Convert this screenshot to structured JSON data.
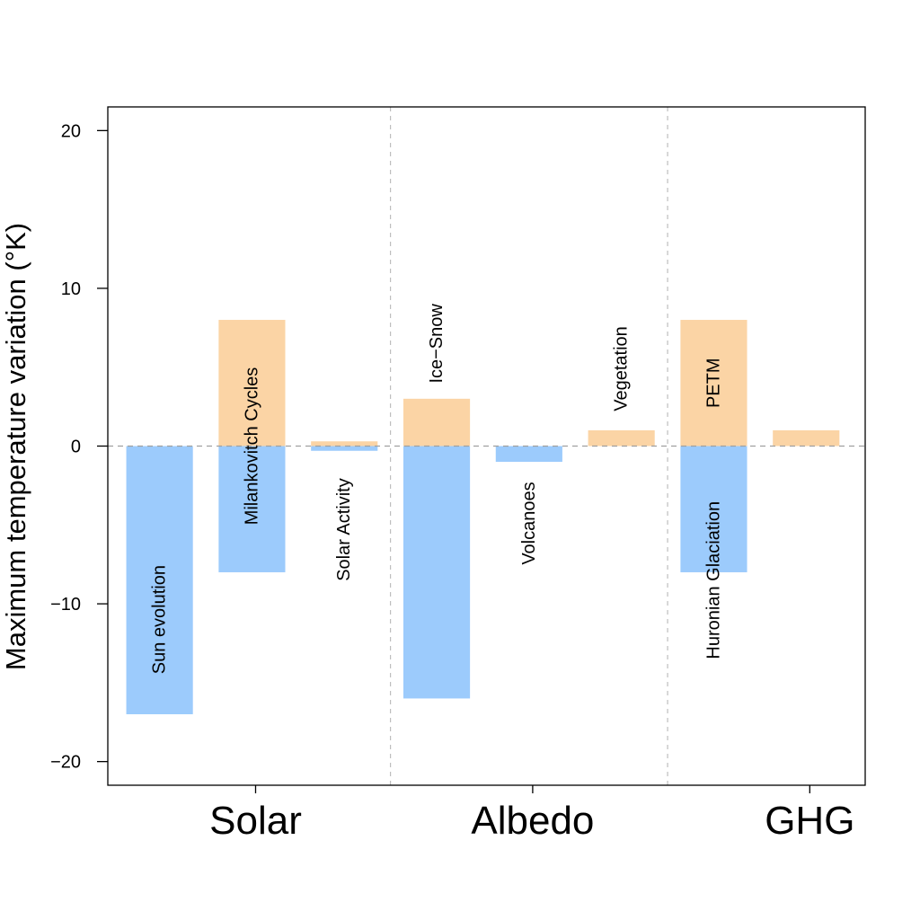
{
  "chart_data": {
    "type": "bar",
    "title": "",
    "xlabel": "",
    "ylabel": "Maximum temperature variation (°K)",
    "ylim": [
      -21.5,
      21.5
    ],
    "y_ticks": [
      -20,
      -10,
      0,
      10,
      20
    ],
    "y_tick_labels": [
      "−20",
      "−10",
      "0",
      "10",
      "20"
    ],
    "grid": false,
    "groups": [
      {
        "name": "Solar",
        "bars": 3
      },
      {
        "name": "Albedo",
        "bars": 3
      },
      {
        "name": "GHG",
        "bars": 2
      }
    ],
    "colors": {
      "warming": "#FBD4A5",
      "cooling": "#9CCBFC"
    },
    "bars": [
      {
        "group": "Solar",
        "max": 0,
        "min": -17,
        "labels": [
          {
            "text": "Sun evolution",
            "at": -11
          }
        ]
      },
      {
        "group": "Solar",
        "max": 8,
        "min": -8,
        "labels": [
          {
            "text": "Milankovitch Cycles",
            "at": 0
          }
        ]
      },
      {
        "group": "Solar",
        "max": 0.3,
        "min": -0.3,
        "labels": [
          {
            "text": "Solar Activity",
            "at": -5.3
          }
        ]
      },
      {
        "group": "Albedo",
        "max": 3,
        "min": -16,
        "labels": [
          {
            "text": "Ice−Snow",
            "at": 6.5
          }
        ]
      },
      {
        "group": "Albedo",
        "max": 0,
        "min": -1,
        "labels": [
          {
            "text": "Volcanoes",
            "at": -4.9
          }
        ]
      },
      {
        "group": "Albedo",
        "max": 1,
        "min": 0,
        "labels": [
          {
            "text": "Vegetation",
            "at": 4.9
          }
        ]
      },
      {
        "group": "GHG",
        "max": 8,
        "min": -8,
        "labels": [
          {
            "text": "PETM",
            "at": 4
          },
          {
            "text": "Huronian Glaciation",
            "at": -8.5
          }
        ]
      },
      {
        "group": "GHG",
        "max": 1,
        "min": 0,
        "labels": []
      }
    ]
  }
}
